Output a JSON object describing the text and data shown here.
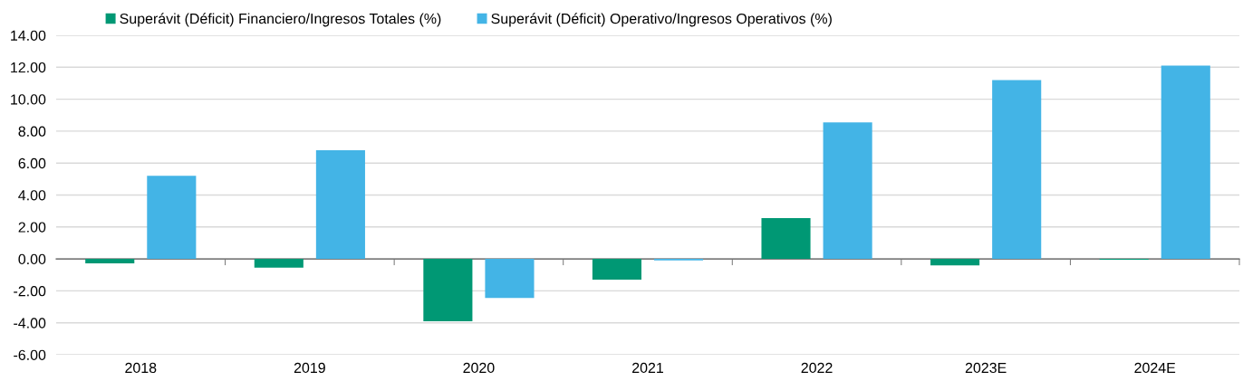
{
  "chart_data": {
    "type": "bar",
    "categories": [
      "2018",
      "2019",
      "2020",
      "2021",
      "2022",
      "2023E",
      "2024E"
    ],
    "series": [
      {
        "name": "Superávit (Déficit) Financiero/Ingresos Totales (%)",
        "color": "#009874",
        "values": [
          -0.28,
          -0.55,
          -3.9,
          -1.3,
          2.55,
          -0.4,
          -0.05
        ]
      },
      {
        "name": "Superávit (Déficit) Operativo/Ingresos Operativos (%)",
        "color": "#43b4e6",
        "values": [
          5.2,
          6.8,
          -2.45,
          -0.1,
          8.55,
          11.2,
          12.1
        ]
      }
    ],
    "ylim": [
      -6,
      14
    ],
    "yticks": [
      {
        "value": -6,
        "label": "-6.00"
      },
      {
        "value": -4,
        "label": "-4.00"
      },
      {
        "value": -2,
        "label": "-2.00"
      },
      {
        "value": 0,
        "label": "0.00"
      },
      {
        "value": 2,
        "label": "2.00"
      },
      {
        "value": 4,
        "label": "4.00"
      },
      {
        "value": 6,
        "label": "6.00"
      },
      {
        "value": 8,
        "label": "8.00"
      },
      {
        "value": 10,
        "label": "10.00"
      },
      {
        "value": 12,
        "label": "12.00"
      },
      {
        "value": 14,
        "label": "14.00"
      }
    ],
    "grid": "y",
    "legend": "top left"
  }
}
